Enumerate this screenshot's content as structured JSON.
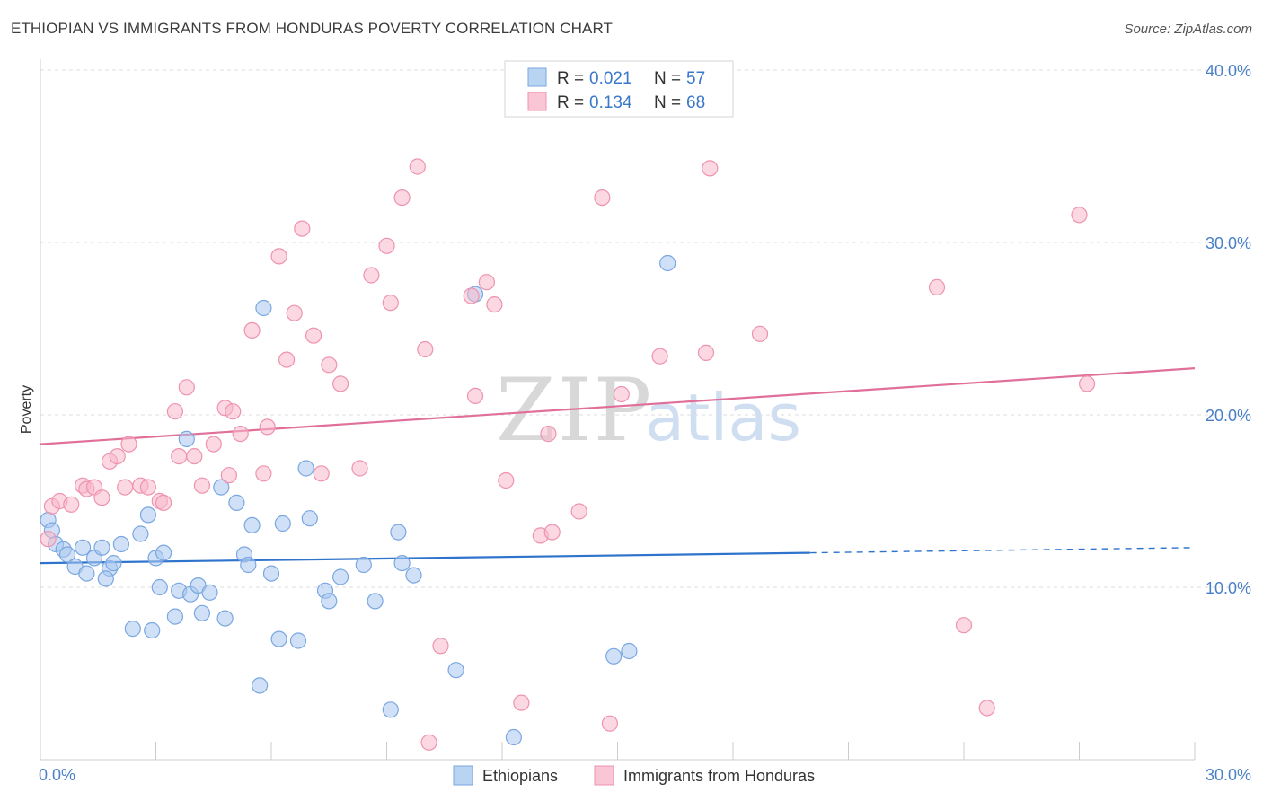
{
  "header": {
    "title": "ETHIOPIAN VS IMMIGRANTS FROM HONDURAS POVERTY CORRELATION CHART",
    "source": "Source: ZipAtlas.com"
  },
  "watermark": {
    "part1": "ZIP",
    "part2": "atlas"
  },
  "colors": {
    "blue_fill": "#a9c8f0",
    "blue_stroke": "#7aa7e0",
    "blue_line": "#2f74cc",
    "pink_fill": "#f7b8cb",
    "pink_stroke": "#ee93af",
    "pink_line": "#e0709a",
    "grid": "#dcdcdc",
    "tick_text": "#4a7fc8"
  },
  "legend": {
    "rows": [
      {
        "r_label": "R = ",
        "r_value": "0.021",
        "n_label": "N = ",
        "n_value": "57"
      },
      {
        "r_label": "R = ",
        "r_value": "0.134",
        "n_label": "N = ",
        "n_value": "68"
      }
    ]
  },
  "bottom_legend": [
    "Ethiopians",
    "Immigrants from Honduras"
  ],
  "chart_data": {
    "type": "scatter",
    "title": "ETHIOPIAN VS IMMIGRANTS FROM HONDURAS POVERTY CORRELATION CHART",
    "xlabel": "",
    "ylabel": "Poverty",
    "xlim": [
      0,
      30
    ],
    "ylim": [
      0,
      40
    ],
    "x_tick_labels": [
      "0.0%",
      "30.0%"
    ],
    "y_ticks": [
      10,
      20,
      30,
      40
    ],
    "y_tick_labels": [
      "10.0%",
      "20.0%",
      "30.0%",
      "40.0%"
    ],
    "grid": true,
    "legend_position": "top-center",
    "series": [
      {
        "name": "Ethiopians",
        "r": 0.021,
        "n": 57,
        "trend": {
          "x0": 0,
          "y0": 11.4,
          "x1": 20.0,
          "y1": 12.0,
          "dashed_to_x": 30.0,
          "dashed_y1": 12.3
        },
        "points": [
          [
            0.2,
            13.9
          ],
          [
            0.3,
            13.3
          ],
          [
            0.4,
            12.5
          ],
          [
            0.6,
            12.2
          ],
          [
            0.7,
            11.9
          ],
          [
            0.9,
            11.2
          ],
          [
            1.2,
            10.8
          ],
          [
            1.1,
            12.3
          ],
          [
            1.4,
            11.7
          ],
          [
            1.6,
            12.3
          ],
          [
            1.8,
            11.1
          ],
          [
            1.7,
            10.5
          ],
          [
            1.9,
            11.4
          ],
          [
            2.1,
            12.5
          ],
          [
            2.6,
            13.1
          ],
          [
            2.8,
            14.2
          ],
          [
            3.0,
            11.7
          ],
          [
            3.2,
            12.0
          ],
          [
            2.4,
            7.6
          ],
          [
            2.9,
            7.5
          ],
          [
            3.1,
            10.0
          ],
          [
            3.6,
            9.8
          ],
          [
            3.9,
            9.6
          ],
          [
            4.1,
            10.1
          ],
          [
            4.4,
            9.7
          ],
          [
            3.5,
            8.3
          ],
          [
            4.2,
            8.5
          ],
          [
            4.8,
            8.2
          ],
          [
            3.8,
            18.6
          ],
          [
            4.7,
            15.8
          ],
          [
            5.1,
            14.9
          ],
          [
            5.5,
            13.6
          ],
          [
            5.3,
            11.9
          ],
          [
            5.4,
            11.3
          ],
          [
            6.0,
            10.8
          ],
          [
            6.2,
            7.0
          ],
          [
            6.7,
            6.9
          ],
          [
            5.7,
            4.3
          ],
          [
            5.8,
            26.2
          ],
          [
            6.3,
            13.7
          ],
          [
            6.9,
            16.9
          ],
          [
            7.0,
            14.0
          ],
          [
            7.4,
            9.8
          ],
          [
            7.5,
            9.2
          ],
          [
            7.8,
            10.6
          ],
          [
            8.4,
            11.3
          ],
          [
            8.7,
            9.2
          ],
          [
            9.3,
            13.2
          ],
          [
            9.4,
            11.4
          ],
          [
            9.7,
            10.7
          ],
          [
            9.1,
            2.9
          ],
          [
            11.3,
            27.0
          ],
          [
            10.8,
            5.2
          ],
          [
            12.3,
            1.3
          ],
          [
            14.9,
            6.0
          ],
          [
            15.3,
            6.3
          ],
          [
            16.3,
            28.8
          ]
        ]
      },
      {
        "name": "Immigrants from Honduras",
        "r": 0.134,
        "n": 68,
        "trend": {
          "x0": 0,
          "y0": 18.3,
          "x1": 30.0,
          "y1": 22.7
        },
        "points": [
          [
            0.2,
            12.8
          ],
          [
            0.3,
            14.7
          ],
          [
            0.5,
            15.0
          ],
          [
            0.8,
            14.8
          ],
          [
            1.1,
            15.9
          ],
          [
            1.2,
            15.7
          ],
          [
            1.4,
            15.8
          ],
          [
            1.6,
            15.2
          ],
          [
            1.8,
            17.3
          ],
          [
            2.0,
            17.6
          ],
          [
            2.3,
            18.3
          ],
          [
            2.2,
            15.8
          ],
          [
            2.6,
            15.9
          ],
          [
            2.8,
            15.8
          ],
          [
            3.1,
            15.0
          ],
          [
            3.2,
            14.9
          ],
          [
            3.5,
            20.2
          ],
          [
            3.8,
            21.6
          ],
          [
            3.6,
            17.6
          ],
          [
            4.0,
            17.6
          ],
          [
            4.2,
            15.9
          ],
          [
            4.5,
            18.3
          ],
          [
            4.8,
            20.4
          ],
          [
            5.0,
            20.2
          ],
          [
            4.9,
            16.5
          ],
          [
            5.2,
            18.9
          ],
          [
            5.5,
            24.9
          ],
          [
            5.8,
            16.6
          ],
          [
            5.9,
            19.3
          ],
          [
            6.2,
            29.2
          ],
          [
            6.4,
            23.2
          ],
          [
            6.6,
            25.9
          ],
          [
            6.8,
            30.8
          ],
          [
            7.1,
            24.6
          ],
          [
            7.3,
            16.6
          ],
          [
            7.5,
            22.9
          ],
          [
            7.8,
            21.8
          ],
          [
            8.3,
            16.9
          ],
          [
            8.6,
            28.1
          ],
          [
            9.0,
            29.8
          ],
          [
            9.1,
            26.5
          ],
          [
            9.4,
            32.6
          ],
          [
            9.8,
            34.4
          ],
          [
            10.0,
            23.8
          ],
          [
            10.4,
            6.6
          ],
          [
            10.1,
            1.0
          ],
          [
            11.2,
            26.9
          ],
          [
            11.3,
            21.1
          ],
          [
            11.6,
            27.7
          ],
          [
            11.8,
            26.4
          ],
          [
            12.1,
            16.2
          ],
          [
            12.5,
            3.3
          ],
          [
            13.0,
            13.0
          ],
          [
            13.2,
            18.9
          ],
          [
            13.3,
            13.2
          ],
          [
            14.0,
            14.4
          ],
          [
            14.6,
            32.6
          ],
          [
            14.8,
            2.1
          ],
          [
            15.1,
            21.2
          ],
          [
            16.1,
            23.4
          ],
          [
            17.3,
            23.6
          ],
          [
            17.4,
            34.3
          ],
          [
            18.7,
            24.7
          ],
          [
            23.3,
            27.4
          ],
          [
            24.0,
            7.8
          ],
          [
            24.6,
            3.0
          ],
          [
            27.0,
            31.6
          ],
          [
            27.2,
            21.8
          ]
        ]
      }
    ]
  }
}
